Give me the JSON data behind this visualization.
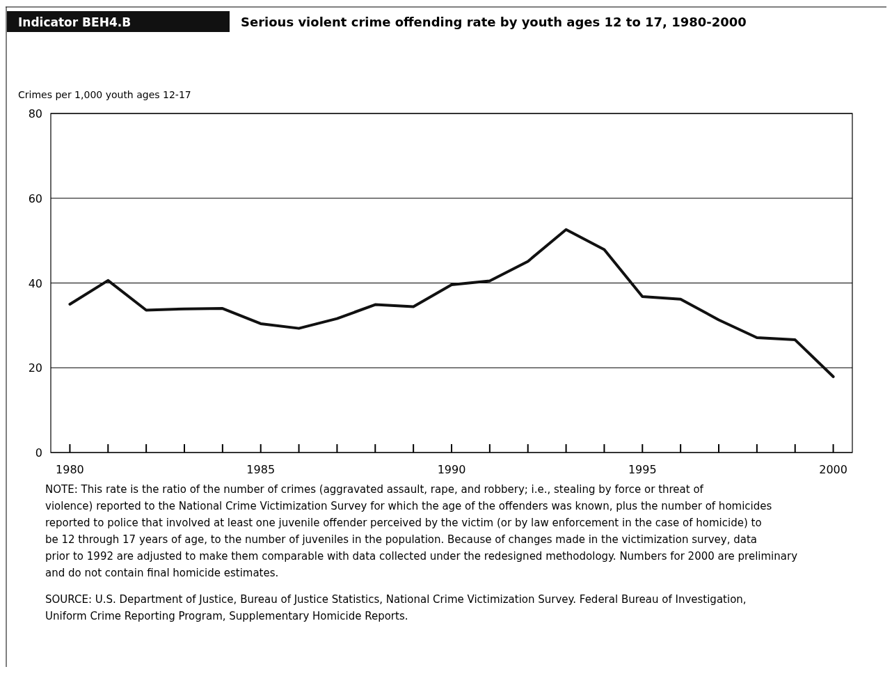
{
  "chart_data": {
    "type": "line",
    "title": "Serious violent crime offending rate by youth ages 12 to 17, 1980-2000",
    "subtitle": "Indicator BEH4.B",
    "ylabel": "Crimes per 1,000 youth ages 12-17",
    "x": [
      1980,
      1981,
      1982,
      1983,
      1984,
      1985,
      1986,
      1987,
      1988,
      1989,
      1990,
      1991,
      1992,
      1993,
      1994,
      1995,
      1996,
      1997,
      1998,
      1999,
      2000
    ],
    "series": [
      {
        "color": "#111111",
        "values": [
          35.0,
          40.6,
          33.6,
          33.9,
          34.0,
          30.4,
          29.3,
          31.6,
          34.9,
          34.4,
          39.6,
          40.5,
          45.1,
          52.6,
          47.9,
          36.8,
          36.2,
          31.3,
          27.1,
          26.6,
          17.9
        ]
      }
    ],
    "xlim": [
      1979.5,
      2000.5
    ],
    "xticks": [
      1980,
      {
        "value": 1981,
        "label": null
      },
      {
        "value": 1982,
        "label": null
      },
      {
        "value": 1983,
        "label": null
      },
      {
        "value": 1984,
        "label": null
      },
      1985,
      {
        "value": 1986,
        "label": null
      },
      {
        "value": 1987,
        "label": null
      },
      {
        "value": 1988,
        "label": null
      },
      {
        "value": 1989,
        "label": null
      },
      1990,
      {
        "value": 1991,
        "label": null
      },
      {
        "value": 1992,
        "label": null
      },
      {
        "value": 1993,
        "label": null
      },
      {
        "value": 1994,
        "label": null
      },
      1995,
      {
        "value": 1996,
        "label": null
      },
      {
        "value": 1997,
        "label": null
      },
      {
        "value": 1998,
        "label": null
      },
      {
        "value": 1999,
        "label": null
      },
      2000
    ],
    "ylim": [
      0,
      80
    ],
    "yticks": [
      0,
      20,
      40,
      60,
      80
    ],
    "grid": "y",
    "marker": "none",
    "line_style": "solid",
    "annotations": [
      "NOTE: This rate is the ratio of the number of crimes (aggravated assault, rape, and robbery; i.e., stealing by force or threat of violence) reported to the National Crime Victimization Survey for which the age of the offenders was known, plus the number of homicides reported to police that involved at least one juvenile offender perceived by the victim (or by law enforcement in the case of homicide) to be 12 through 17 years of age, to the number of juveniles in the population. Because of changes made in the victimization survey, data prior to 1992 are adjusted to make them comparable with data collected under the redesigned methodology. Numbers for 2000 are preliminary and do not contain final homicide estimates.",
      "SOURCE: U.S. Department of Justice, Bureau of Justice Statistics, National Crime Victimization Survey. Federal Bureau of Investigation, Uniform Crime Reporting Program, Supplementary Homicide Reports."
    ]
  }
}
